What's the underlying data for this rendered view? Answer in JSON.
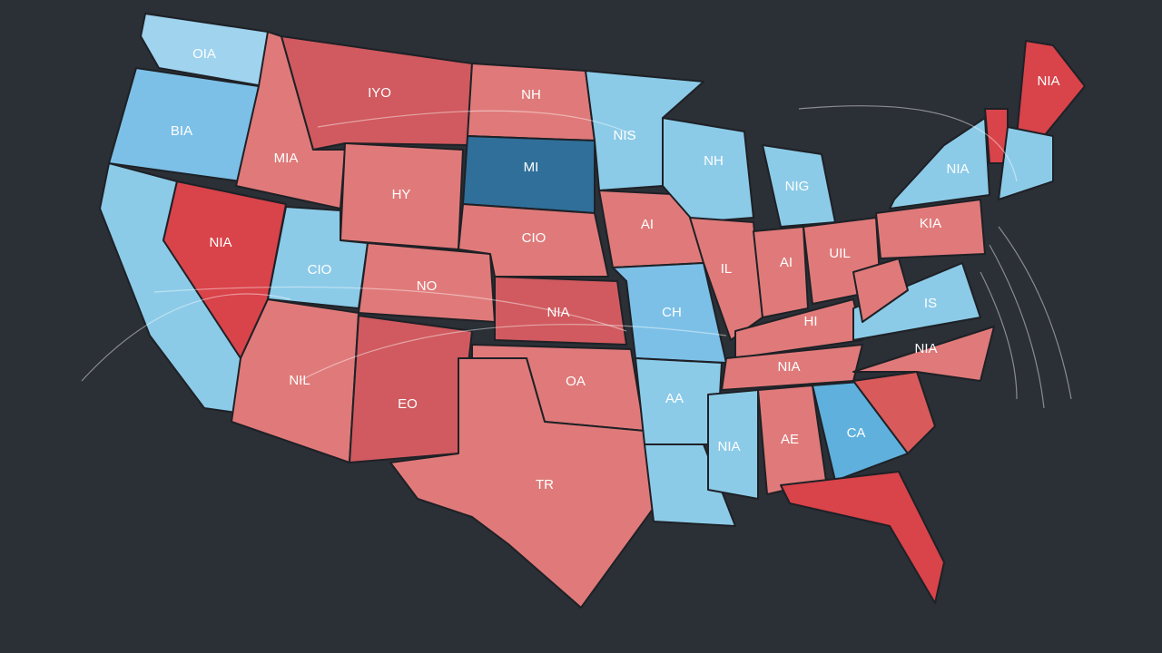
{
  "map": {
    "labels": [
      "OIA",
      "BIA",
      "MIA",
      "NIA",
      "IYO",
      "HY",
      "CIO",
      "NO",
      "NIL",
      "EO",
      "NH",
      "MI",
      "CIO",
      "NIA",
      "OA",
      "TR",
      "NIS",
      "AI",
      "CH",
      "AA",
      "NH",
      "IL",
      "NIG",
      "AI",
      "UIL",
      "HI",
      "NIA",
      "NIA",
      "AE",
      "CA",
      "NIA",
      "IS",
      "KIA",
      "NIA",
      "NIA"
    ]
  }
}
